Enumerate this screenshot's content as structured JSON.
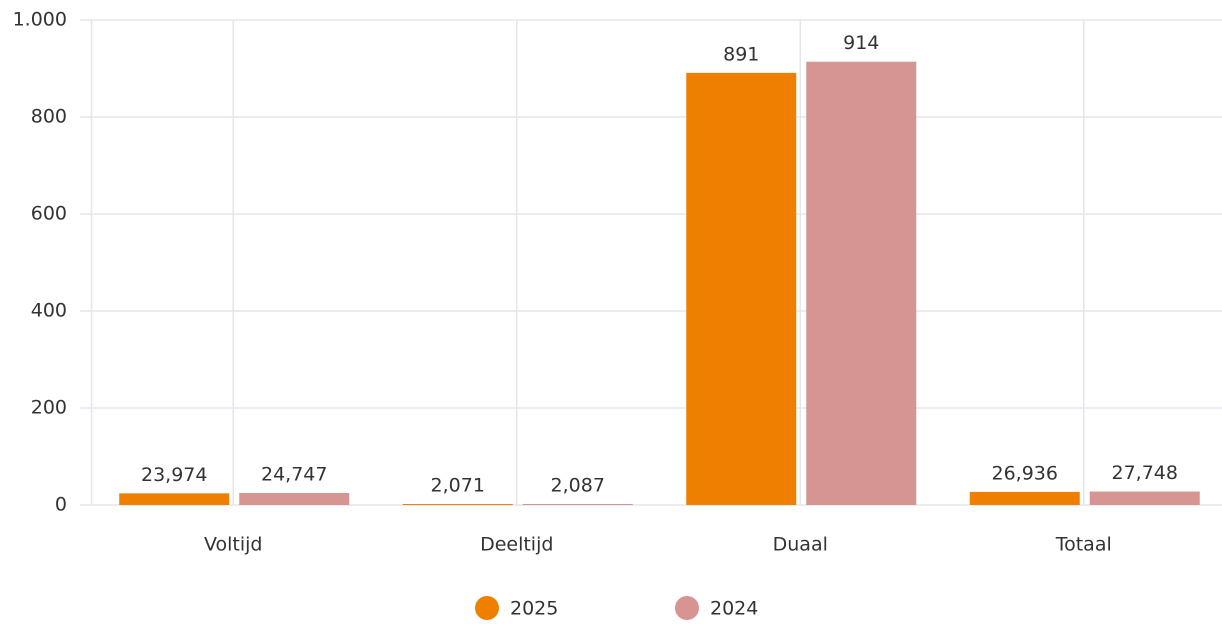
{
  "chart_data": {
    "type": "bar",
    "categories": [
      "Voltijd",
      "Deeltijd",
      "Duaal",
      "Totaal"
    ],
    "series": [
      {
        "name": "2025",
        "color": "#ef7f00",
        "values": [
          23.974,
          2.071,
          891,
          26.936
        ],
        "value_labels": [
          "23,974",
          "2,071",
          "891",
          "26,936"
        ]
      },
      {
        "name": "2024",
        "color": "#d69593",
        "values": [
          24.747,
          2.087,
          914,
          27.748
        ],
        "value_labels": [
          "24,747",
          "2,087",
          "914",
          "27,748"
        ]
      }
    ],
    "ylim": [
      0,
      1000
    ],
    "yticks": [
      0,
      200,
      400,
      600,
      800,
      {
        "value": 1000,
        "label": "1.000"
      }
    ],
    "grid": true,
    "legend": "bottom"
  }
}
